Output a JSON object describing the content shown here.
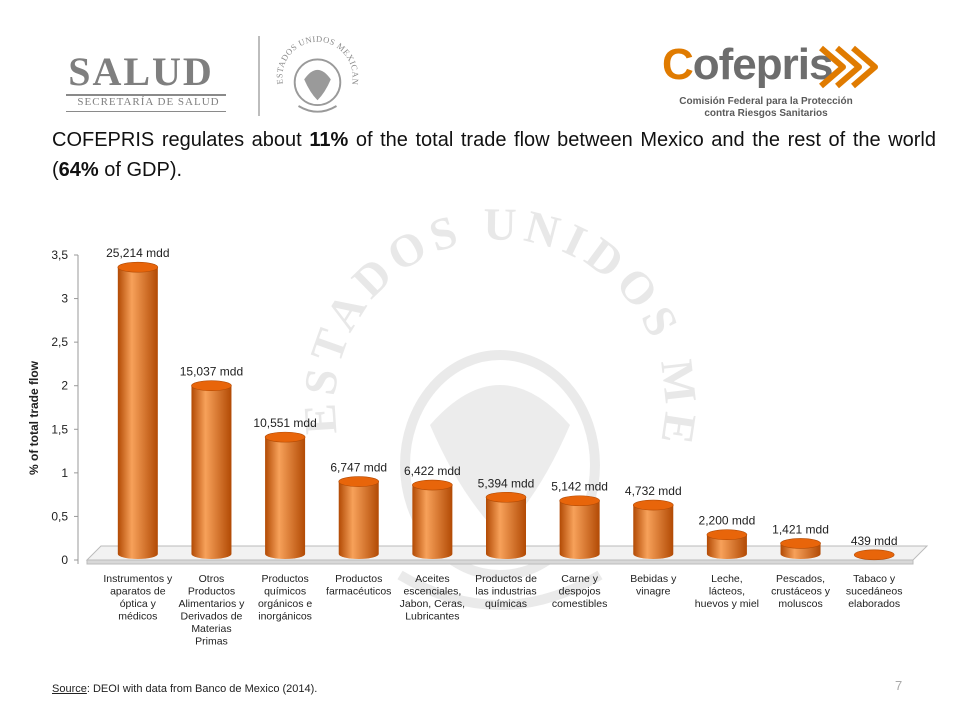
{
  "header": {
    "salud_word": "SALUD",
    "salud_sub": "SECRETARÍA DE SALUD",
    "cofepris_c": "C",
    "cofepris_rest": "ofepris",
    "cofepris_sub_line1": "Comisión Federal para la Protección",
    "cofepris_sub_line2": "contra Riesgos Sanitarios",
    "seal_text": "ESTADOS UNIDOS MEXICANOS"
  },
  "headline": {
    "part1": "COFEPRIS regulates about ",
    "bold1": "11%",
    "part2": " of the total trade flow between Mexico and the rest of the world (",
    "bold2": "64%",
    "part3": " of GDP)."
  },
  "background_seal_text": "ESTADOS UNIDOS MEXICANOS",
  "chart_data": {
    "type": "bar",
    "title": "",
    "ylabel": "% of total trade flow",
    "ylim": [
      0,
      3.5
    ],
    "yticks": [
      "0",
      "0,5",
      "1",
      "1,5",
      "2",
      "2,5",
      "3",
      "3,5"
    ],
    "categories": [
      [
        "Instrumentos y",
        "aparatos de",
        "óptica y",
        "médicos"
      ],
      [
        "Otros",
        "Productos",
        "Alimentarios y",
        "Derivados de",
        "Materias",
        "Primas"
      ],
      [
        "Productos",
        "químicos",
        "orgánicos e",
        "inorgánicos"
      ],
      [
        "Productos",
        "farmacéuticos"
      ],
      [
        "Aceites",
        "escenciales,",
        "Jabon, Ceras,",
        "Lubricantes"
      ],
      [
        "Productos de",
        "las industrias",
        "químicas"
      ],
      [
        "Carne y",
        "despojos",
        "comestibles"
      ],
      [
        "Bebidas y",
        "vinagre"
      ],
      [
        "Leche,",
        "lácteos,",
        "huevos y miel"
      ],
      [
        "Pescados,",
        "crustáceos y",
        "moluscos"
      ],
      [
        "Tabaco y",
        "sucedáneos",
        "elaborados"
      ]
    ],
    "values": [
      3.36,
      2.0,
      1.41,
      0.9,
      0.86,
      0.72,
      0.68,
      0.63,
      0.29,
      0.19,
      0.06
    ],
    "data_labels": [
      "25,214 mdd",
      "15,037 mdd",
      "10,551 mdd",
      "6,747 mdd",
      "6,422 mdd",
      "5,394 mdd",
      "5,142 mdd",
      "4,732 mdd",
      "2,200 mdd",
      "1,421 mdd",
      "439 mdd"
    ],
    "bar_color": "#e8650a",
    "bar_shade_color": "#b24a04",
    "bar_highlight_color": "#f7a15a",
    "grid": false,
    "legend": "none"
  },
  "footer": {
    "source_label": "Source",
    "source_text": ": DEOI with data from Banco de Mexico (2014).",
    "page_number": "7"
  }
}
